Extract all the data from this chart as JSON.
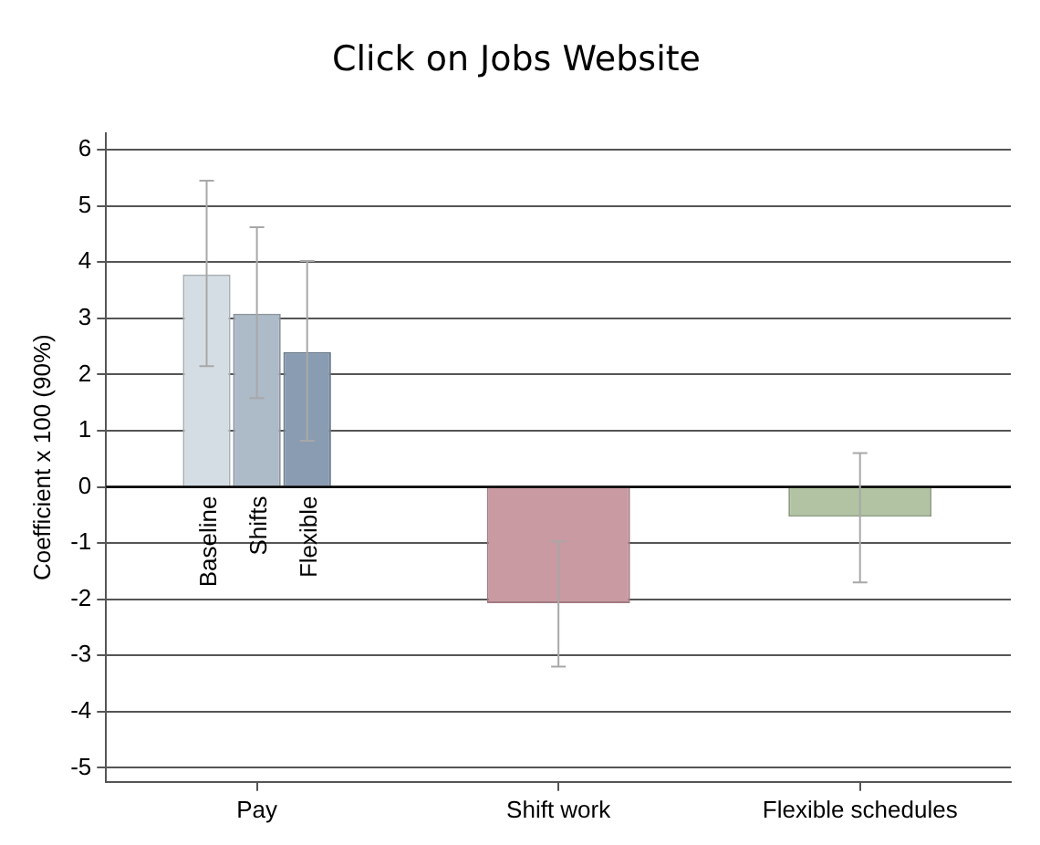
{
  "chart_data": {
    "type": "bar",
    "title": "Click on Jobs Website",
    "ylabel": "Coefficient x 100 (90%)",
    "categories": [
      "Pay",
      "Shift work",
      "Flexible schedules"
    ],
    "series": [
      {
        "name": "Baseline",
        "color": "#d5dde4",
        "values": [
          3.78,
          null,
          null
        ],
        "errors": [
          [
            2.15,
            5.45
          ],
          null,
          null
        ]
      },
      {
        "name": "Shifts",
        "color": "#adbac8",
        "values": [
          3.08,
          null,
          null
        ],
        "errors": [
          [
            1.58,
            4.62
          ],
          null,
          null
        ]
      },
      {
        "name": "Flexible",
        "color": "#8a9cb2",
        "values": [
          2.4,
          null,
          null
        ],
        "errors": [
          [
            0.82,
            4.02
          ],
          null,
          null
        ]
      },
      {
        "color": "#c99aa2",
        "values": [
          null,
          -2.07,
          null
        ],
        "errors": [
          null,
          [
            -3.2,
            -0.97
          ],
          null
        ]
      },
      {
        "color": "#b1c3a2",
        "values": [
          null,
          null,
          -0.53
        ],
        "errors": [
          null,
          null,
          [
            -1.7,
            0.6
          ]
        ]
      }
    ],
    "ylim": [
      -5.25,
      6.3
    ],
    "yticks": [
      -5,
      -4,
      -3,
      -2,
      -1,
      0,
      1,
      2,
      3,
      4,
      5,
      6
    ],
    "grid": "y",
    "legend": false,
    "ref_lines": [
      {
        "axis": "y",
        "value": 0,
        "color": "#000000"
      }
    ]
  }
}
